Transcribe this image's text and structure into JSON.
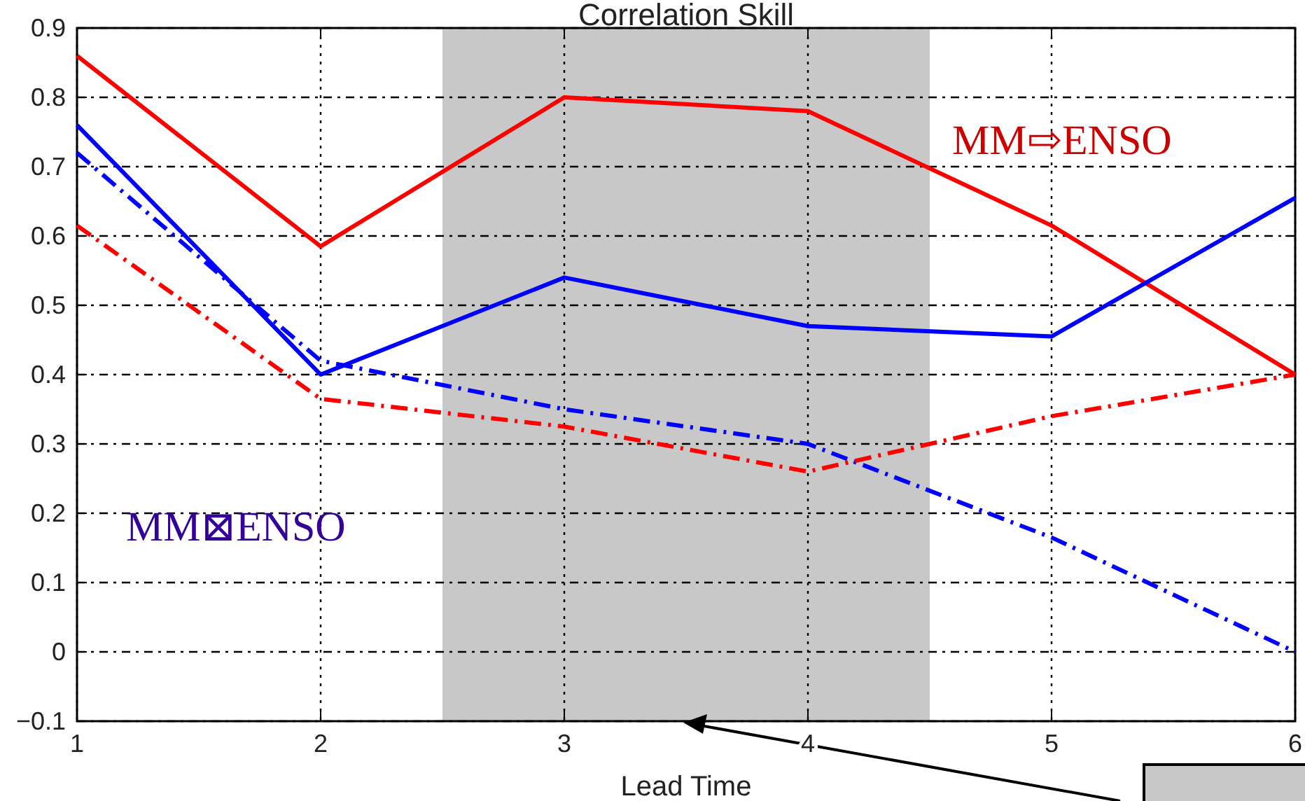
{
  "chart_data": {
    "type": "line",
    "title": "Correlation Skill",
    "xlabel": "Lead Time",
    "x": [
      1,
      2,
      3,
      4,
      5,
      6
    ],
    "xlim": [
      1,
      6
    ],
    "xticks": [
      1,
      2,
      3,
      4,
      5,
      6
    ],
    "ylim": [
      -0.1,
      0.9
    ],
    "yticks": [
      {
        "value": -0.1,
        "label": "−0.1"
      },
      0,
      0.1,
      0.2,
      0.3,
      0.4,
      0.5,
      0.6,
      0.7,
      0.8,
      0.9
    ],
    "grid": true,
    "series": [
      {
        "color": "#ff0000",
        "line_style": "solid",
        "values": [
          0.86,
          0.585,
          0.8,
          0.78,
          0.615,
          0.4
        ]
      },
      {
        "color": "#0000ff",
        "line_style": "solid",
        "values": [
          0.76,
          0.4,
          0.54,
          0.47,
          0.455,
          0.655
        ]
      },
      {
        "color": "#0000ff",
        "line_style": "dashdot",
        "values": [
          0.72,
          0.42,
          0.35,
          0.3,
          0.165,
          0.0
        ]
      },
      {
        "color": "#ff0000",
        "line_style": "dashdot",
        "values": [
          0.615,
          0.365,
          0.325,
          0.26,
          0.34,
          0.4
        ]
      }
    ],
    "bands": [
      {
        "axis": "x",
        "from": 2.5,
        "to": 4.5,
        "color": "#c8c8c8"
      }
    ],
    "annotations": [
      "MM⇨ENSO",
      "MM⊠ENSO"
    ]
  }
}
